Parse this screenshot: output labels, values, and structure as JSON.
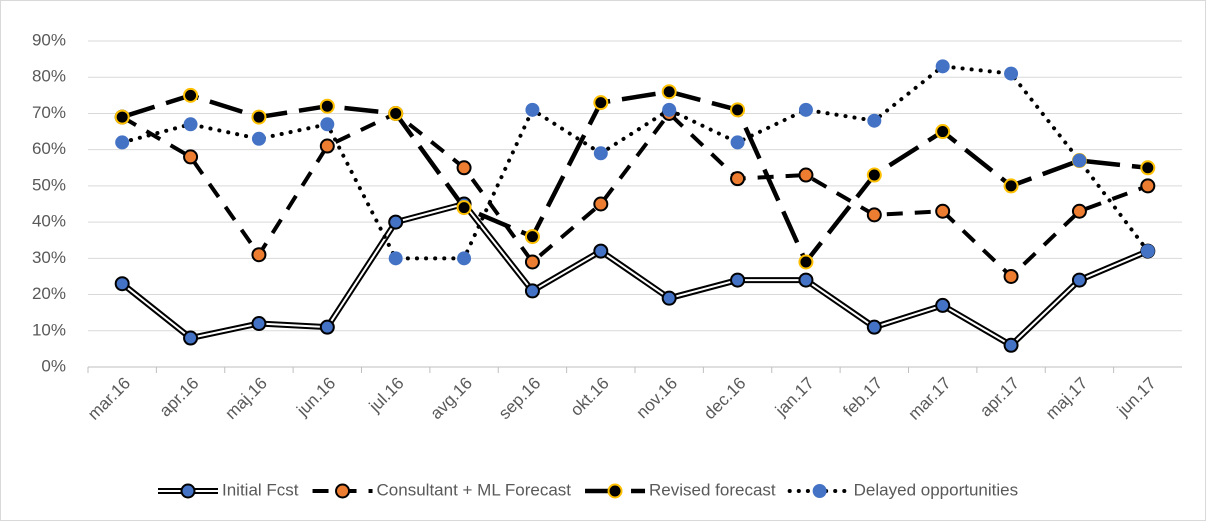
{
  "chart_data": {
    "type": "line",
    "categories": [
      "mar.16",
      "apr.16",
      "maj.16",
      "jun.16",
      "jul.16",
      "avg.16",
      "sep.16",
      "okt.16",
      "nov.16",
      "dec.16",
      "jan.17",
      "feb.17",
      "mar.17",
      "apr.17",
      "maj.17",
      "jun.17"
    ],
    "ylim": [
      0,
      90
    ],
    "yticks": [
      {
        "value": 0,
        "label": "0%"
      },
      {
        "value": 10,
        "label": "10%"
      },
      {
        "value": 20,
        "label": "20%"
      },
      {
        "value": 30,
        "label": "30%"
      },
      {
        "value": 40,
        "label": "40%"
      },
      {
        "value": 50,
        "label": "50%"
      },
      {
        "value": 60,
        "label": "60%"
      },
      {
        "value": 70,
        "label": "70%"
      },
      {
        "value": 80,
        "label": "80%"
      },
      {
        "value": 90,
        "label": "90%"
      }
    ],
    "grid": true,
    "legend": "bottom",
    "series": [
      {
        "name": "Initial Fcst",
        "color": "#4472c4",
        "line_style": "double",
        "values": [
          23,
          8,
          12,
          11,
          40,
          45,
          21,
          32,
          19,
          24,
          24,
          11,
          17,
          6,
          24,
          32
        ]
      },
      {
        "name": "Consultant + ML Forecast",
        "color": "#ed7d31",
        "line_style": "dash",
        "values": [
          69,
          58,
          31,
          61,
          70,
          55,
          29,
          45,
          70,
          52,
          53,
          42,
          43,
          25,
          43,
          50
        ]
      },
      {
        "name": "Revised forecast",
        "color": "#000000",
        "line_style": "longdash",
        "values": [
          69,
          75,
          69,
          72,
          70,
          44,
          36,
          73,
          76,
          71,
          29,
          53,
          65,
          50,
          57,
          55
        ]
      },
      {
        "name": "Delayed opportunities",
        "color": "#4472c4",
        "line_style": "dot",
        "values": [
          62,
          67,
          63,
          67,
          30,
          30,
          71,
          59,
          71,
          62,
          71,
          68,
          83,
          81,
          57,
          32
        ]
      }
    ]
  }
}
